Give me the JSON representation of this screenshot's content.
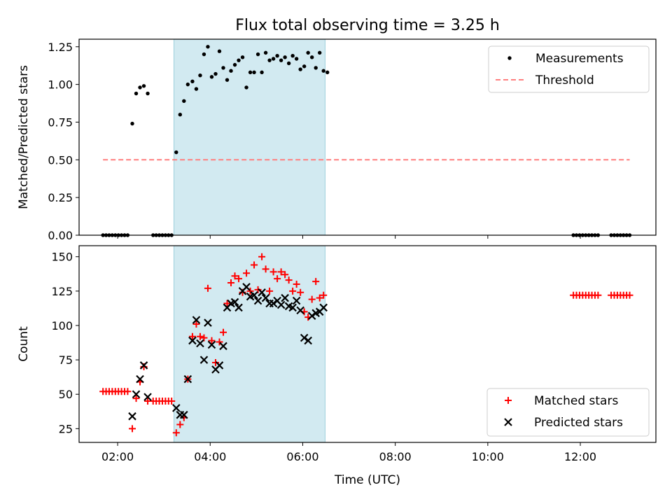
{
  "chart_data": [
    {
      "type": "scatter",
      "title": "Flux total observing time = 3.25 h",
      "xlabel": "",
      "ylabel": "Matched/Predicted stars",
      "xlim": [
        "01:10",
        "13:38"
      ],
      "ylim": [
        0,
        1.3
      ],
      "yticks": [
        0,
        0.25,
        0.5,
        0.75,
        1.0,
        1.25
      ],
      "ytick_labels": [
        "0.00",
        "0.25",
        "0.50",
        "0.75",
        "1.00",
        "1.25"
      ],
      "xticks": [
        "02:00",
        "04:00",
        "06:00",
        "08:00",
        "10:00",
        "12:00"
      ],
      "grid": false,
      "legend_position": "top-right",
      "shaded_interval": {
        "start": "03:13",
        "end": "06:29",
        "color": "#add8e6"
      },
      "series": [
        {
          "name": "Measurements",
          "kind": "points",
          "color": "#000000",
          "points": [
            [
              "01:41",
              0
            ],
            [
              "01:45",
              0
            ],
            [
              "01:49",
              0
            ],
            [
              "01:53",
              0
            ],
            [
              "01:57",
              0
            ],
            [
              "02:01",
              0
            ],
            [
              "02:05",
              0
            ],
            [
              "02:09",
              0
            ],
            [
              "02:13",
              0
            ],
            [
              "02:19",
              0.74
            ],
            [
              "02:24",
              0.94
            ],
            [
              "02:29",
              0.98
            ],
            [
              "02:34",
              0.99
            ],
            [
              "02:39",
              0.94
            ],
            [
              "02:46",
              0
            ],
            [
              "02:50",
              0
            ],
            [
              "02:54",
              0
            ],
            [
              "02:58",
              0
            ],
            [
              "03:02",
              0
            ],
            [
              "03:06",
              0
            ],
            [
              "03:10",
              0
            ],
            [
              "03:16",
              0.55
            ],
            [
              "03:21",
              0.8
            ],
            [
              "03:26",
              0.89
            ],
            [
              "03:31",
              1.0
            ],
            [
              "03:37",
              1.02
            ],
            [
              "03:42",
              0.97
            ],
            [
              "03:47",
              1.06
            ],
            [
              "03:52",
              1.2
            ],
            [
              "03:57",
              1.25
            ],
            [
              "04:02",
              1.05
            ],
            [
              "04:07",
              1.07
            ],
            [
              "04:12",
              1.22
            ],
            [
              "04:17",
              1.11
            ],
            [
              "04:22",
              1.03
            ],
            [
              "04:27",
              1.09
            ],
            [
              "04:32",
              1.13
            ],
            [
              "04:37",
              1.16
            ],
            [
              "04:42",
              1.18
            ],
            [
              "04:47",
              0.98
            ],
            [
              "04:52",
              1.08
            ],
            [
              "04:57",
              1.08
            ],
            [
              "05:02",
              1.2
            ],
            [
              "05:07",
              1.08
            ],
            [
              "05:12",
              1.21
            ],
            [
              "05:17",
              1.16
            ],
            [
              "05:22",
              1.17
            ],
            [
              "05:27",
              1.19
            ],
            [
              "05:32",
              1.16
            ],
            [
              "05:37",
              1.18
            ],
            [
              "05:42",
              1.14
            ],
            [
              "05:47",
              1.19
            ],
            [
              "05:52",
              1.17
            ],
            [
              "05:57",
              1.1
            ],
            [
              "06:02",
              1.12
            ],
            [
              "06:07",
              1.21
            ],
            [
              "06:12",
              1.18
            ],
            [
              "06:17",
              1.11
            ],
            [
              "06:22",
              1.21
            ],
            [
              "06:27",
              1.09
            ],
            [
              "06:32",
              1.08
            ],
            [
              "11:51",
              0
            ],
            [
              "11:55",
              0
            ],
            [
              "11:59",
              0
            ],
            [
              "12:03",
              0
            ],
            [
              "12:07",
              0
            ],
            [
              "12:11",
              0
            ],
            [
              "12:15",
              0
            ],
            [
              "12:19",
              0
            ],
            [
              "12:23",
              0
            ],
            [
              "12:40",
              0
            ],
            [
              "12:44",
              0
            ],
            [
              "12:48",
              0
            ],
            [
              "12:52",
              0
            ],
            [
              "12:56",
              0
            ],
            [
              "13:00",
              0
            ],
            [
              "13:04",
              0
            ]
          ]
        },
        {
          "name": "Threshold",
          "kind": "dashed-line",
          "color": "#ff7f7f",
          "points": [
            [
              "01:41",
              0.5
            ],
            [
              "13:04",
              0.5
            ]
          ]
        }
      ]
    },
    {
      "type": "scatter",
      "title": "",
      "xlabel": "Time (UTC)",
      "ylabel": "Count",
      "xlim": [
        "01:10",
        "13:38"
      ],
      "ylim": [
        15,
        158
      ],
      "yticks": [
        25,
        50,
        75,
        100,
        125,
        150
      ],
      "ytick_labels": [
        "25",
        "50",
        "75",
        "100",
        "125",
        "150"
      ],
      "xticks": [
        "02:00",
        "04:00",
        "06:00",
        "08:00",
        "10:00",
        "12:00"
      ],
      "xtick_labels": [
        "02:00",
        "04:00",
        "06:00",
        "08:00",
        "10:00",
        "12:00"
      ],
      "grid": false,
      "legend_position": "bottom-right",
      "shaded_interval": {
        "start": "03:13",
        "end": "06:29",
        "color": "#add8e6"
      },
      "series": [
        {
          "name": "Matched stars",
          "kind": "plus",
          "color": "#ff0000",
          "points": [
            [
              "01:41",
              52
            ],
            [
              "01:45",
              52
            ],
            [
              "01:49",
              52
            ],
            [
              "01:53",
              52
            ],
            [
              "01:57",
              52
            ],
            [
              "02:01",
              52
            ],
            [
              "02:05",
              52
            ],
            [
              "02:09",
              52
            ],
            [
              "02:13",
              52
            ],
            [
              "02:19",
              25
            ],
            [
              "02:24",
              47
            ],
            [
              "02:29",
              59
            ],
            [
              "02:34",
              70
            ],
            [
              "02:39",
              45
            ],
            [
              "02:46",
              45
            ],
            [
              "02:50",
              45
            ],
            [
              "02:54",
              45
            ],
            [
              "02:58",
              45
            ],
            [
              "03:02",
              45
            ],
            [
              "03:06",
              45
            ],
            [
              "03:10",
              45
            ],
            [
              "03:16",
              22
            ],
            [
              "03:21",
              28
            ],
            [
              "03:26",
              33
            ],
            [
              "03:31",
              61
            ],
            [
              "03:37",
              92
            ],
            [
              "03:42",
              101
            ],
            [
              "03:47",
              92
            ],
            [
              "03:52",
              91
            ],
            [
              "03:57",
              127
            ],
            [
              "04:02",
              89
            ],
            [
              "04:07",
              73
            ],
            [
              "04:12",
              88
            ],
            [
              "04:17",
              95
            ],
            [
              "04:22",
              116
            ],
            [
              "04:27",
              131
            ],
            [
              "04:32",
              136
            ],
            [
              "04:37",
              134
            ],
            [
              "04:42",
              124
            ],
            [
              "04:47",
              138
            ],
            [
              "04:52",
              125
            ],
            [
              "04:57",
              144
            ],
            [
              "05:02",
              126
            ],
            [
              "05:07",
              150
            ],
            [
              "05:12",
              141
            ],
            [
              "05:17",
              125
            ],
            [
              "05:22",
              139
            ],
            [
              "05:27",
              134
            ],
            [
              "05:32",
              139
            ],
            [
              "05:37",
              137
            ],
            [
              "05:42",
              133
            ],
            [
              "05:47",
              125
            ],
            [
              "05:52",
              130
            ],
            [
              "05:57",
              124
            ],
            [
              "06:02",
              110
            ],
            [
              "06:07",
              106
            ],
            [
              "06:12",
              119
            ],
            [
              "06:17",
              132
            ],
            [
              "06:22",
              120
            ],
            [
              "06:27",
              122
            ],
            [
              "11:51",
              122
            ],
            [
              "11:55",
              122
            ],
            [
              "11:59",
              122
            ],
            [
              "12:03",
              122
            ],
            [
              "12:07",
              122
            ],
            [
              "12:11",
              122
            ],
            [
              "12:15",
              122
            ],
            [
              "12:19",
              122
            ],
            [
              "12:23",
              122
            ],
            [
              "12:40",
              122
            ],
            [
              "12:44",
              122
            ],
            [
              "12:48",
              122
            ],
            [
              "12:52",
              122
            ],
            [
              "12:56",
              122
            ],
            [
              "13:00",
              122
            ],
            [
              "13:04",
              122
            ]
          ]
        },
        {
          "name": "Predicted stars",
          "kind": "x",
          "color": "#000000",
          "points": [
            [
              "02:19",
              34
            ],
            [
              "02:24",
              50
            ],
            [
              "02:29",
              61
            ],
            [
              "02:34",
              71
            ],
            [
              "02:39",
              48
            ],
            [
              "03:16",
              40
            ],
            [
              "03:21",
              35
            ],
            [
              "03:26",
              35
            ],
            [
              "03:31",
              61
            ],
            [
              "03:37",
              89
            ],
            [
              "03:42",
              104
            ],
            [
              "03:47",
              87
            ],
            [
              "03:52",
              75
            ],
            [
              "03:57",
              102
            ],
            [
              "04:02",
              86
            ],
            [
              "04:07",
              68
            ],
            [
              "04:12",
              71
            ],
            [
              "04:17",
              85
            ],
            [
              "04:22",
              113
            ],
            [
              "04:27",
              116
            ],
            [
              "04:32",
              117
            ],
            [
              "04:37",
              113
            ],
            [
              "04:42",
              125
            ],
            [
              "04:47",
              128
            ],
            [
              "04:52",
              121
            ],
            [
              "04:57",
              122
            ],
            [
              "05:02",
              118
            ],
            [
              "05:07",
              124
            ],
            [
              "05:12",
              120
            ],
            [
              "05:17",
              116
            ],
            [
              "05:22",
              116
            ],
            [
              "05:27",
              118
            ],
            [
              "05:32",
              115
            ],
            [
              "05:37",
              120
            ],
            [
              "05:42",
              114
            ],
            [
              "05:47",
              113
            ],
            [
              "05:52",
              118
            ],
            [
              "05:57",
              111
            ],
            [
              "06:02",
              91
            ],
            [
              "06:07",
              89
            ],
            [
              "06:12",
              107
            ],
            [
              "06:17",
              109
            ],
            [
              "06:22",
              110
            ],
            [
              "06:27",
              113
            ]
          ]
        }
      ]
    }
  ]
}
